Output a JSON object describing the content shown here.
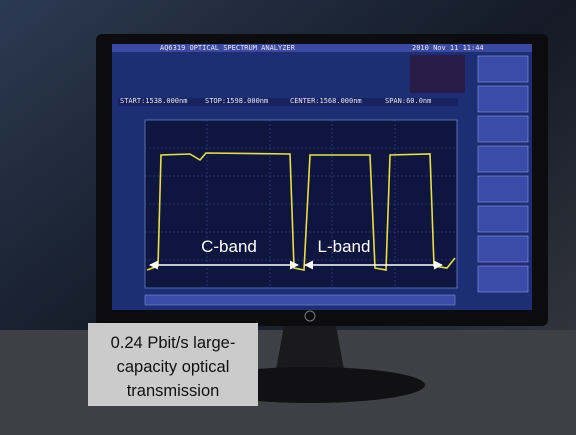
{
  "screen": {
    "title": "AQ6319 OPTICAL SPECTRUM ANALYZER",
    "date": "2010 Nov 11 11:44",
    "start": "START:1538.000nm",
    "stop": "STOP:1598.000nm",
    "center": "CENTER:1568.000nm",
    "span": "SPAN:60.0nm"
  },
  "labels": {
    "c_band": "C-band",
    "l_band": "L-band"
  },
  "caption": {
    "lines": [
      "0.24 Pbit/s large-",
      "capacity optical",
      "transmission"
    ]
  }
}
